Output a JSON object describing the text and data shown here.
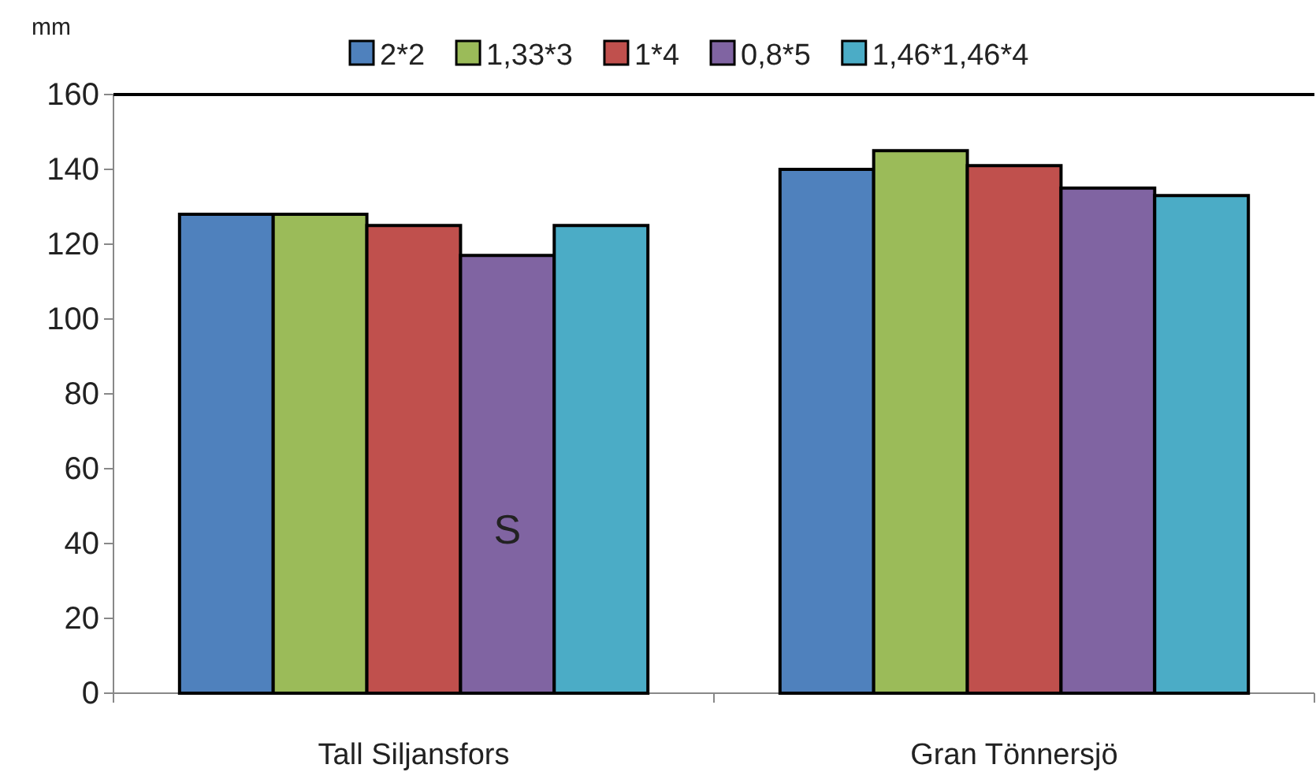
{
  "chart_data": {
    "type": "bar",
    "ylabel": "mm",
    "categories": [
      "Tall Siljansfors",
      "Gran Tönnersjö"
    ],
    "series": [
      {
        "name": "2*2",
        "color": "#4f81bd",
        "values": [
          128,
          140
        ]
      },
      {
        "name": "1,33*3",
        "color": "#9bbb59",
        "values": [
          128,
          145
        ]
      },
      {
        "name": "1*4",
        "color": "#c0504d",
        "values": [
          125,
          141
        ]
      },
      {
        "name": "0,8*5",
        "color": "#8064a2",
        "values": [
          117,
          135
        ]
      },
      {
        "name": "1,46*1,46*4",
        "color": "#4bacc6",
        "values": [
          125,
          133
        ]
      }
    ],
    "ylim": [
      0,
      160
    ],
    "yticks": [
      0,
      20,
      40,
      60,
      80,
      100,
      120,
      140,
      160
    ],
    "grid": false,
    "legend": "top",
    "annotations": [
      "S"
    ]
  }
}
